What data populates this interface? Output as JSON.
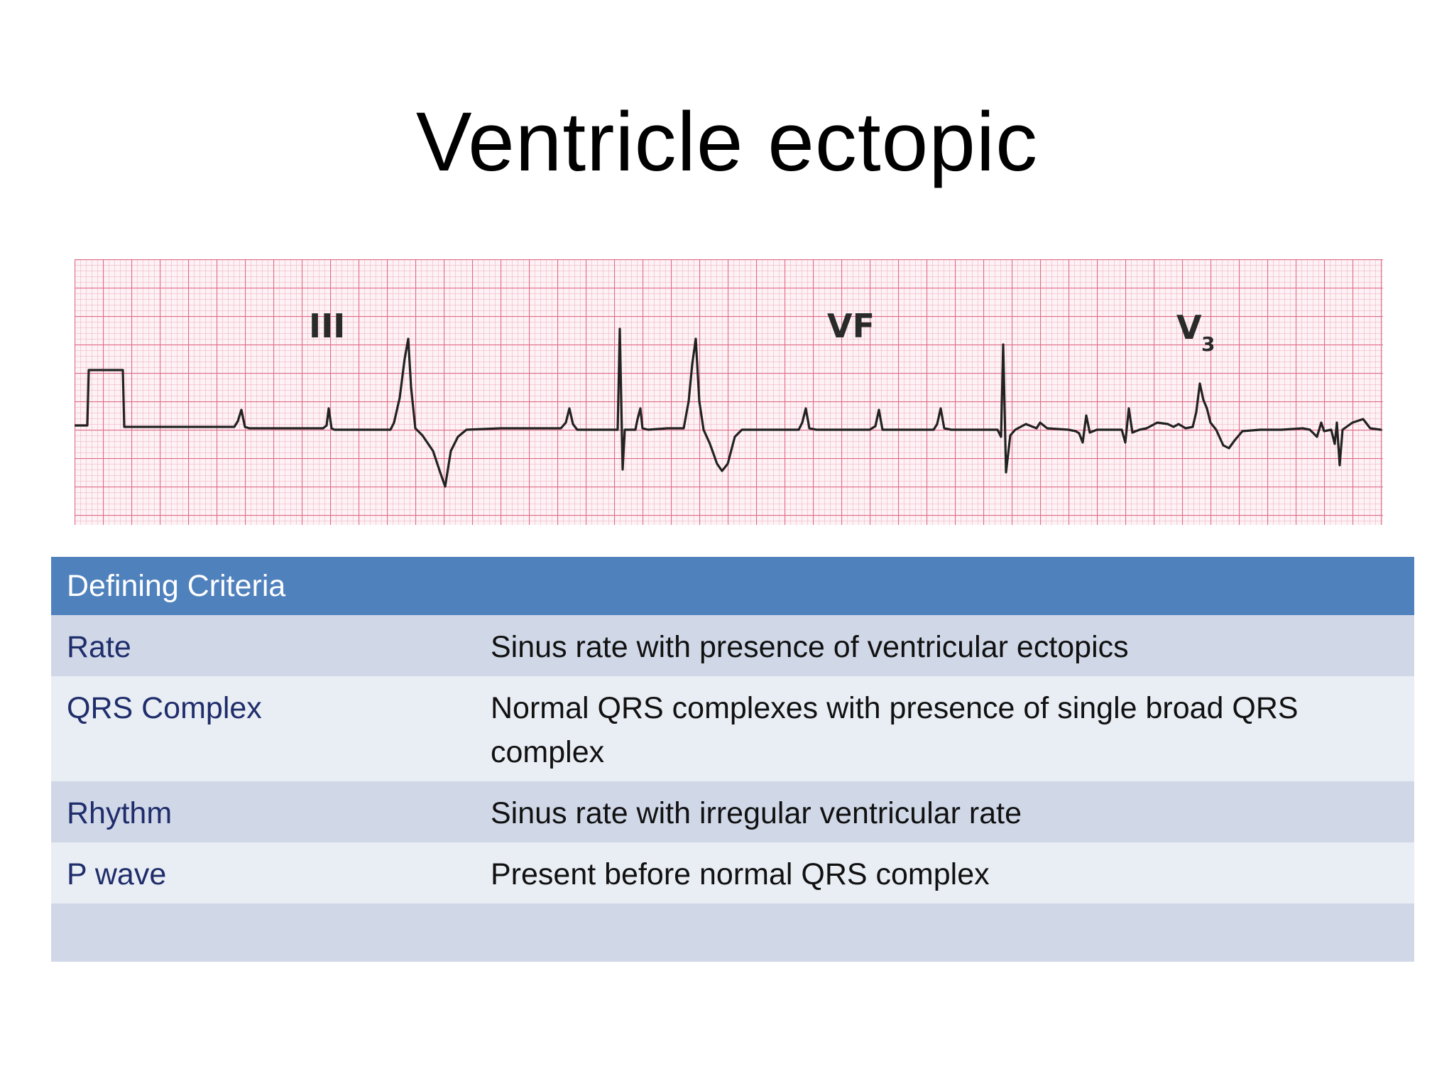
{
  "slide": {
    "title": "Ventricle ectopic"
  },
  "ecg": {
    "lead_labels": [
      "III",
      "VF",
      "V",
      "3"
    ]
  },
  "table": {
    "header": "Defining Criteria",
    "rows": [
      {
        "term": "Rate",
        "description": "Sinus rate with presence of ventricular ectopics"
      },
      {
        "term": "QRS Complex",
        "description": "Normal QRS complexes with presence of single broad QRS complex"
      },
      {
        "term": "Rhythm",
        "description": "Sinus rate with irregular ventricular rate"
      },
      {
        "term": "P wave",
        "description": "Present before normal QRS complex"
      },
      {
        "term": "",
        "description": ""
      }
    ]
  },
  "colors": {
    "header_blue": "#4f81bd",
    "band_dark": "#d0d8e8",
    "band_light": "#e9edf4",
    "term_text": "#1f2d6b",
    "ecg_grid": "#e8728c",
    "ecg_trace": "#222222"
  }
}
